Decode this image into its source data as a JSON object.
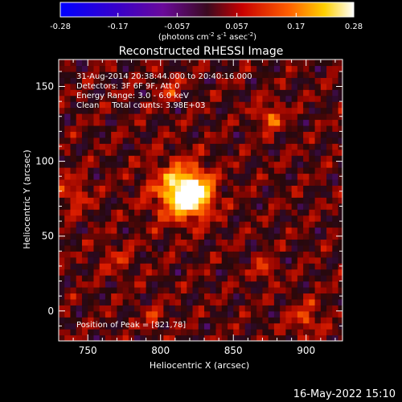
{
  "chart_data": {
    "type": "heatmap",
    "title": "Reconstructed RHESSI Image",
    "xlabel": "Heliocentric X (arcsec)",
    "ylabel": "Heliocentric Y (arcsec)",
    "xlim": [
      730,
      925
    ],
    "ylim": [
      -20,
      168
    ],
    "x_ticks": [
      750,
      800,
      850,
      900
    ],
    "y_ticks": [
      0,
      50,
      100,
      150
    ],
    "colorbar": {
      "min": -0.28,
      "max": 0.28,
      "ticks": [
        "-0.28",
        "-0.17",
        "-0.057",
        "0.057",
        "0.17",
        "0.28"
      ],
      "unit_label": "(photons cm",
      "unit_sup1": "-2",
      "unit_mid": " s",
      "unit_sup2": "-1",
      "unit_end": " asec",
      "unit_sup3": "-2",
      "unit_close": ")"
    },
    "annotations": [
      "31-Aug-2014 20:38:44.000 to 20:40:16.000",
      "Detectors: 3F 6F 9F, Att 0",
      "Energy Range: 3.0 - 6.0 keV",
      "Clean     Total counts: 3.98E+03"
    ],
    "peak": {
      "label": "Position of Peak = [821,78]",
      "x": 821,
      "y": 78,
      "value": 0.28
    },
    "sources": [
      {
        "x": 821,
        "y": 78,
        "sigma": 10,
        "value": 0.28
      },
      {
        "x": 810,
        "y": 82,
        "sigma": 14,
        "value": 0.12
      },
      {
        "x": 875,
        "y": 130,
        "sigma": 6,
        "value": 0.13
      },
      {
        "x": 872,
        "y": 28,
        "sigma": 4,
        "value": 0.14
      },
      {
        "x": 805,
        "y": 150,
        "sigma": 6,
        "value": 0.08
      },
      {
        "x": 740,
        "y": 78,
        "sigma": 8,
        "value": 0.09
      },
      {
        "x": 900,
        "y": -5,
        "sigma": 8,
        "value": 0.09
      },
      {
        "x": 795,
        "y": -5,
        "sigma": 5,
        "value": 0.08
      },
      {
        "x": 770,
        "y": 35,
        "sigma": 8,
        "value": 0.06
      }
    ]
  },
  "footer": {
    "date": "16-May-2022 15:10"
  }
}
